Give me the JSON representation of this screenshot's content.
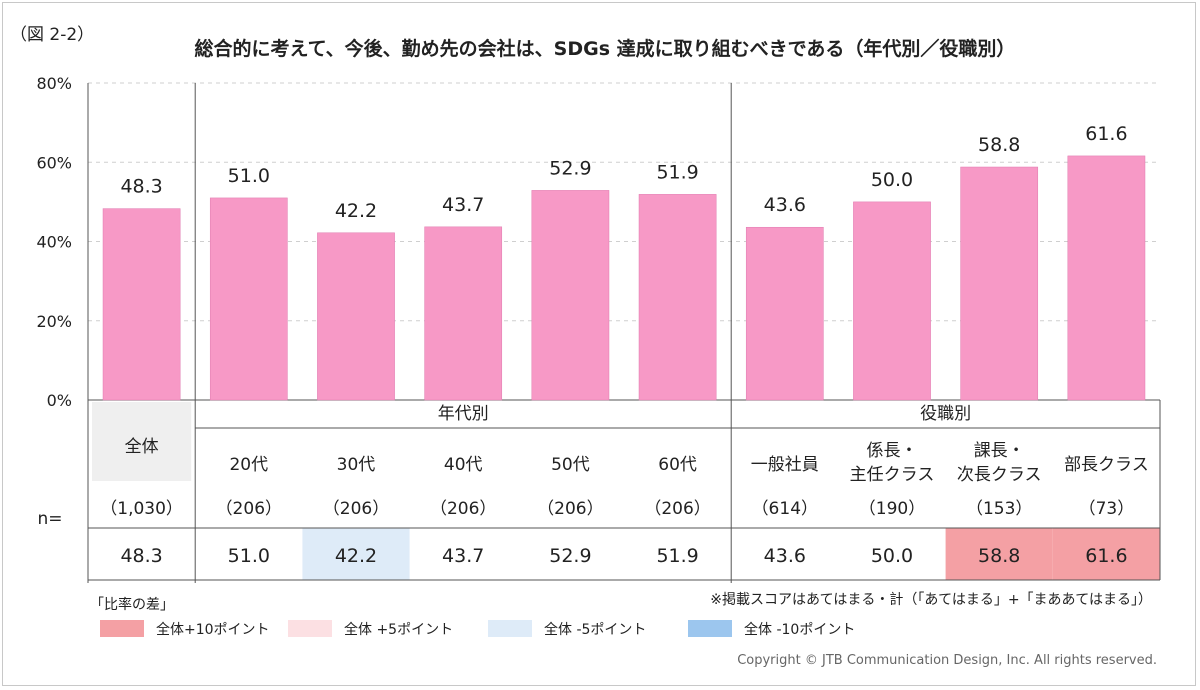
{
  "figure_label": "（図 2-2）",
  "chart_data": {
    "type": "bar",
    "title": "総合的に考えて、今後、勤め先の会社は、SDGs 達成に取り組むべきである（年代別／役職別）",
    "yticks": [
      "80%",
      "60%",
      "40%",
      "20%",
      "0%"
    ],
    "ylim": [
      0,
      80
    ],
    "grid": true,
    "bar_color": "#f799c6",
    "categories": [
      "全体",
      "20代",
      "30代",
      "40代",
      "50代",
      "60代",
      "一般社員",
      "係長・主任クラス",
      "課長・次長クラス",
      "部長クラス"
    ],
    "values": [
      48.3,
      51.0,
      42.2,
      43.7,
      52.9,
      51.9,
      43.6,
      50.0,
      58.8,
      61.6
    ],
    "value_labels": [
      "48.3",
      "51.0",
      "42.2",
      "43.7",
      "52.9",
      "51.9",
      "43.6",
      "50.0",
      "58.8",
      "61.6"
    ]
  },
  "table": {
    "groups": [
      "年代別",
      "役職別"
    ],
    "category_lines": [
      [
        "全体"
      ],
      [
        "20代"
      ],
      [
        "30代"
      ],
      [
        "40代"
      ],
      [
        "50代"
      ],
      [
        "60代"
      ],
      [
        "一般社員"
      ],
      [
        "係長・",
        "主任クラス"
      ],
      [
        "課長・",
        "次長クラス"
      ],
      [
        "部長クラス"
      ]
    ],
    "n_label": "n=",
    "n_values": [
      "（1,030）",
      "（206）",
      "（206）",
      "（206）",
      "（206）",
      "（206）",
      "（614）",
      "（190）",
      "（153）",
      "（73）"
    ],
    "ratio_values": [
      "48.3",
      "51.0",
      "42.2",
      "43.7",
      "52.9",
      "51.9",
      "43.6",
      "50.0",
      "58.8",
      "61.6"
    ],
    "highlight": [
      "none",
      "none",
      "minus5",
      "none",
      "none",
      "none",
      "none",
      "none",
      "plus10",
      "plus10"
    ]
  },
  "legend": {
    "heading": "「比率の差」",
    "items": [
      {
        "key": "plus10",
        "label": "全体+10ポイント",
        "color": "#f4a0a4"
      },
      {
        "key": "plus5",
        "label": "全体 +5ポイント",
        "color": "#fce0e3"
      },
      {
        "key": "minus5",
        "label": "全体 -5ポイント",
        "color": "#deebf8"
      },
      {
        "key": "minus10",
        "label": "全体 -10ポイント",
        "color": "#9cc6ee"
      }
    ]
  },
  "note": "※掲載スコアはあてはまる・計（「あてはまる」+「まああてはまる」）",
  "copyright": "Copyright © JTB Communication Design, Inc. All rights reserved."
}
